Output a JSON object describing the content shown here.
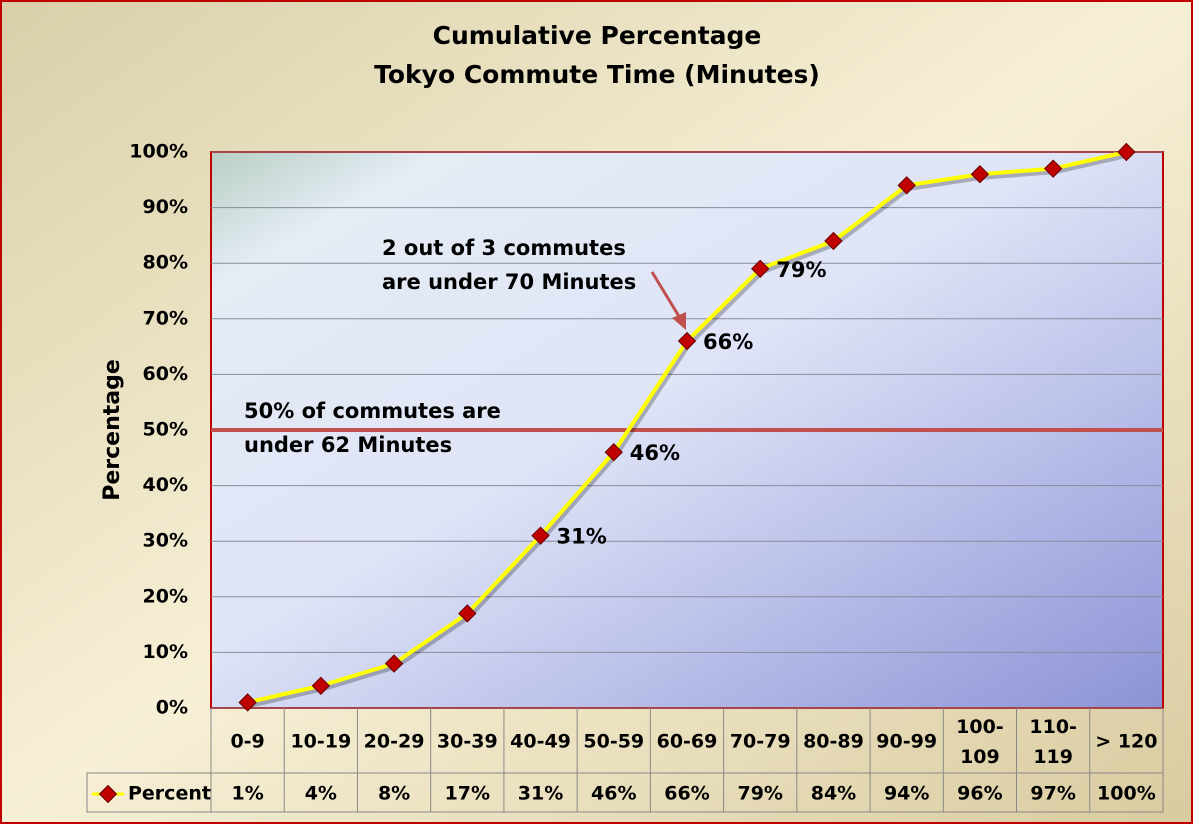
{
  "chart_data": {
    "type": "line",
    "title": "Cumulative Percentage",
    "subtitle": "Tokyo Commute Time (Minutes)",
    "y_label": "Percentage",
    "categories": [
      "0-9",
      "10-19",
      "20-29",
      "30-39",
      "40-49",
      "50-59",
      "60-69",
      "70-79",
      "80-89",
      "90-99",
      "100-109",
      "110-119",
      "> 120"
    ],
    "series": [
      {
        "name": "Percent",
        "color": "#ffff00",
        "marker_color": "#c00000",
        "values": [
          1,
          4,
          8,
          17,
          31,
          46,
          66,
          79,
          84,
          94,
          96,
          97,
          100
        ],
        "value_labels": [
          "1%",
          "4%",
          "8%",
          "17%",
          "31%",
          "46%",
          "66%",
          "79%",
          "84%",
          "94%",
          "96%",
          "97%",
          "100%"
        ]
      }
    ],
    "ylim": [
      0,
      100
    ],
    "yticks": [
      {
        "value": 0,
        "label": "0%"
      },
      {
        "value": 10,
        "label": "10%"
      },
      {
        "value": 20,
        "label": "20%"
      },
      {
        "value": 30,
        "label": "30%"
      },
      {
        "value": 40,
        "label": "40%"
      },
      {
        "value": 50,
        "label": "50%"
      },
      {
        "value": 60,
        "label": "60%"
      },
      {
        "value": 70,
        "label": "70%"
      },
      {
        "value": 80,
        "label": "80%"
      },
      {
        "value": 90,
        "label": "90%"
      },
      {
        "value": 100,
        "label": "100%"
      }
    ],
    "grid": true,
    "reference_line": {
      "value": 50,
      "color": "#c0504d"
    },
    "annotations": [
      "2 out of 3 commutes",
      "are under 70 Minutes",
      "50% of commutes are",
      "under 62 Minutes"
    ]
  }
}
